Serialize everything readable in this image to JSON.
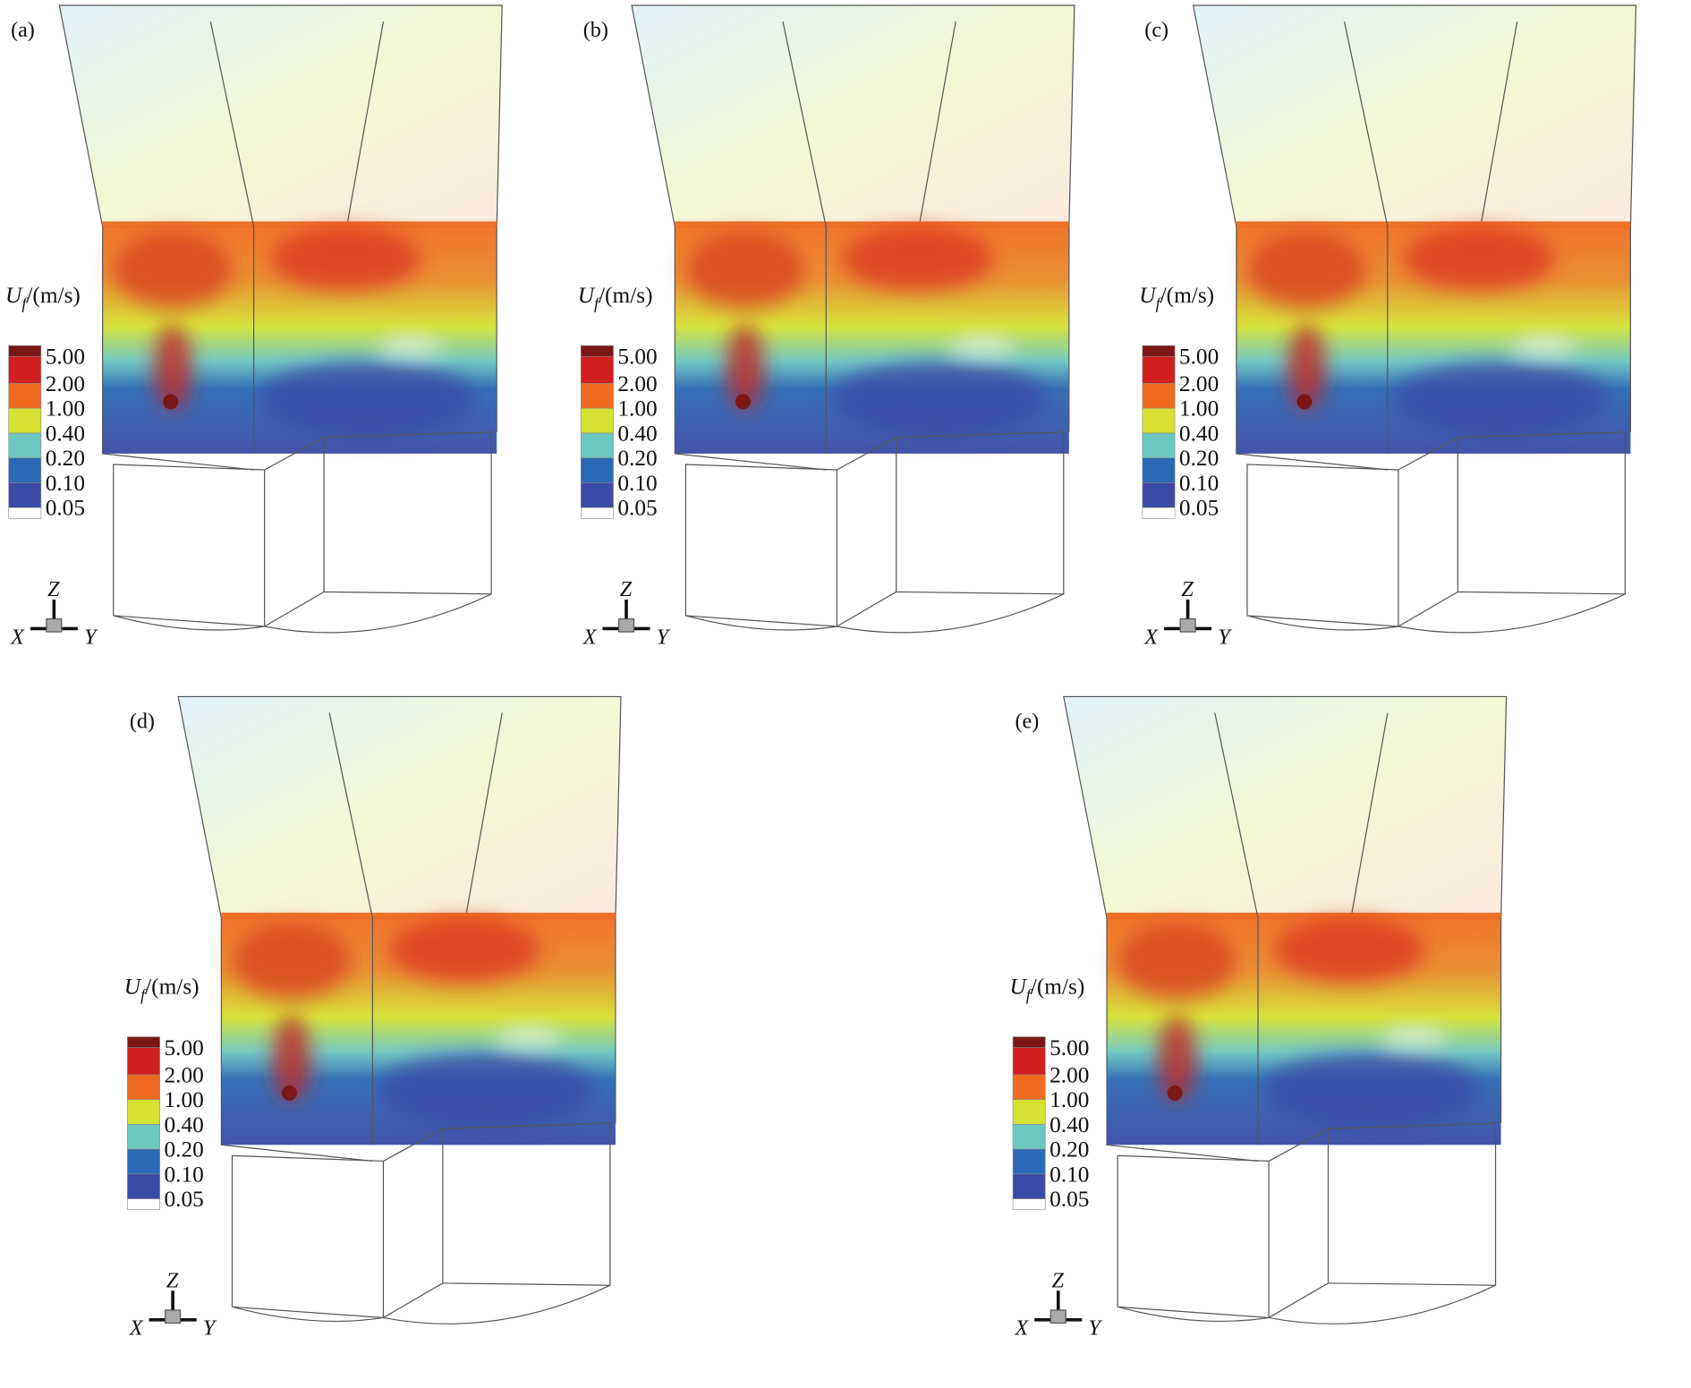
{
  "panels": [
    {
      "label": "(a)",
      "legend": {
        "symbol": "U",
        "subscript": "f",
        "unit": "/(m/s)",
        "levels": [
          "5.00",
          "2.00",
          "1.00",
          "0.40",
          "0.20",
          "0.10",
          "0.05"
        ]
      },
      "axes": {
        "z": "Z",
        "x": "X",
        "y": "Y"
      }
    },
    {
      "label": "(b)",
      "legend": {
        "symbol": "U",
        "subscript": "f",
        "unit": "/(m/s)",
        "levels": [
          "5.00",
          "2.00",
          "1.00",
          "0.40",
          "0.20",
          "0.10",
          "0.05"
        ]
      },
      "axes": {
        "z": "Z",
        "x": "X",
        "y": "Y"
      }
    },
    {
      "label": "(c)",
      "legend": {
        "symbol": "U",
        "subscript": "f",
        "unit": "/(m/s)",
        "levels": [
          "5.00",
          "2.00",
          "1.00",
          "0.40",
          "0.20",
          "0.10",
          "0.05"
        ]
      },
      "axes": {
        "z": "Z",
        "x": "X",
        "y": "Y"
      }
    },
    {
      "label": "(d)",
      "legend": {
        "symbol": "U",
        "subscript": "f",
        "unit": "/(m/s)",
        "levels": [
          "5.00",
          "2.00",
          "1.00",
          "0.40",
          "0.20",
          "0.10",
          "0.05"
        ]
      },
      "axes": {
        "z": "Z",
        "x": "X",
        "y": "Y"
      }
    },
    {
      "label": "(e)",
      "legend": {
        "symbol": "U",
        "subscript": "f",
        "unit": "/(m/s)",
        "levels": [
          "5.00",
          "2.00",
          "1.00",
          "0.40",
          "0.20",
          "0.10",
          "0.05"
        ]
      },
      "axes": {
        "z": "Z",
        "x": "X",
        "y": "Y"
      }
    }
  ],
  "colors": [
    "#7b1716",
    "#d21f1f",
    "#ef6a1f",
    "#d4e131",
    "#6cc7bf",
    "#2a69b5",
    "#3b4aa6",
    "#ffffff"
  ]
}
